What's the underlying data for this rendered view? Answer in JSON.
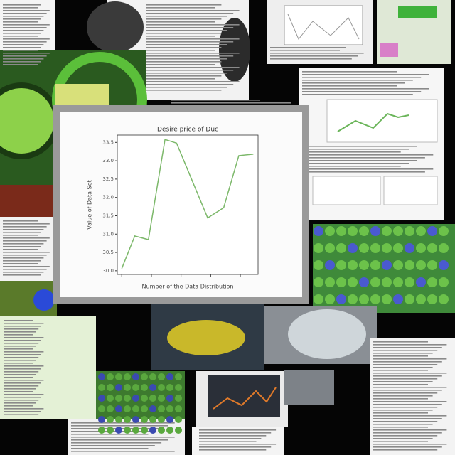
{
  "chart_data": {
    "type": "line",
    "title": "Desire price of Duc",
    "x_label": "Number of the Data Distribution",
    "y_label": "Value of Data Set",
    "x": [
      0,
      0.44,
      0.9,
      1.46,
      1.85,
      2.9,
      3.44,
      3.95,
      4.44
    ],
    "series": [
      {
        "name": "Value",
        "color": "#7cb86a",
        "values": [
          30.06,
          30.95,
          30.85,
          33.58,
          33.48,
          31.44,
          31.72,
          33.14,
          33.18
        ]
      }
    ],
    "xlim": [
      -0.15,
      4.6
    ],
    "xticks": [
      0,
      1,
      2,
      3,
      4
    ],
    "ylim": [
      29.9,
      33.7
    ],
    "yticks": [
      {
        "value": 30.0,
        "label": "30.0"
      },
      {
        "value": 30.5,
        "label": "30.5"
      },
      {
        "value": 31.0,
        "label": "31.0"
      },
      {
        "value": 31.5,
        "label": "31.5"
      },
      {
        "value": 32.0,
        "label": "32.0"
      },
      {
        "value": 32.5,
        "label": "32.5"
      },
      {
        "value": 33.0,
        "label": "33.0"
      },
      {
        "value": 33.5,
        "label": "33.5"
      }
    ]
  }
}
